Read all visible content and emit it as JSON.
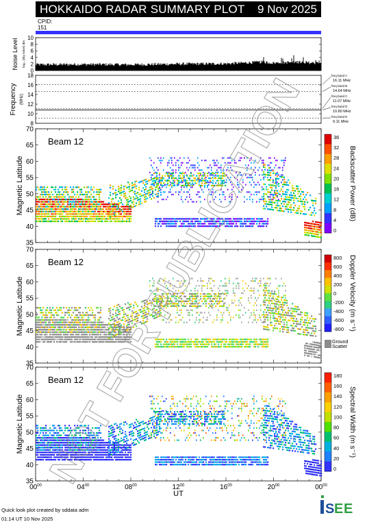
{
  "header": {
    "title": "HOKKAIDO RADAR SUMMARY PLOT",
    "date": "9 Nov 2025"
  },
  "cpid": {
    "label": "CPID:",
    "value": "151"
  },
  "noise": {
    "ylabel": "Noise Level",
    "ylabel_sub": "log₁₀ (sky noise) dm",
    "ticks": [
      "0",
      "2",
      "4",
      "6",
      "8",
      "10"
    ],
    "ylim": [
      0,
      10
    ]
  },
  "frequency": {
    "ylabel": "Frequency",
    "ylabel_unit": "(MHz)",
    "ticks": [
      "8",
      "10",
      "12",
      "14",
      "16",
      "18"
    ],
    "ylim": [
      8,
      18
    ],
    "bands": [
      {
        "name": "freq band A",
        "value": "16.11 MHz",
        "mhz": 16.11
      },
      {
        "name": "freq band B",
        "value": "14.64 MHz",
        "mhz": 14.64
      },
      {
        "name": "freq band C",
        "value": "11.07 MHz",
        "mhz": 11.07
      },
      {
        "name": "freq band D",
        "value": "10.80 MHz",
        "mhz": 10.8
      },
      {
        "name": "freq band E",
        "value": "9.11 MHz",
        "mhz": 9.11
      }
    ]
  },
  "panels": [
    {
      "id": "power",
      "beam": "Beam 12",
      "ylabel": "Magnetic Latitude",
      "colorbar_label": "Backscatter Power (dB)",
      "cb_ticks": [
        "36",
        "32",
        "28",
        "24",
        "20",
        "16",
        "12",
        "8",
        "4",
        "0"
      ]
    },
    {
      "id": "velocity",
      "beam": "Beam 12",
      "ylabel": "Magnetic Latitude",
      "colorbar_label": "Doppler Velocity (m s⁻¹)",
      "cb_ticks": [
        "800",
        "600",
        "400",
        "200",
        "0",
        "-200",
        "-400",
        "-600",
        "-800"
      ],
      "ground_label": "Ground",
      "ground_label2": "Scatter"
    },
    {
      "id": "width",
      "beam": "Beam 12",
      "ylabel": "Magnetic Latitude",
      "colorbar_label": "Spectral Width (m s⁻¹)",
      "cb_ticks": [
        "180",
        "160",
        "140",
        "120",
        "100",
        "80",
        "60",
        "40",
        "20",
        "0"
      ]
    }
  ],
  "lat_ticks": [
    "35",
    "40",
    "45",
    "50",
    "55",
    "60",
    "65",
    "70"
  ],
  "lat_range": [
    35,
    70
  ],
  "time_ticks": [
    {
      "hour": "00",
      "sup": "00"
    },
    {
      "hour": "04",
      "sup": "00"
    },
    {
      "hour": "08",
      "sup": "00"
    },
    {
      "hour": "12",
      "sup": "00"
    },
    {
      "hour": "16",
      "sup": "00"
    },
    {
      "hour": "20",
      "sup": "00"
    },
    {
      "hour": "00",
      "sup": "00"
    }
  ],
  "xlabel": "UT",
  "watermark": "NOT FOR PUBLICATION",
  "footer": {
    "credit": "Quick look plot created by sddata adm",
    "time": "01:14 UT 10 Nov 2025"
  },
  "logo": {
    "text": "ISEE"
  },
  "colors": {
    "header_bg": "#000000",
    "cpid_bar": "#3333ff",
    "ground": "#8c8c8c"
  },
  "chart_data": [
    {
      "type": "line",
      "title": "Noise Level",
      "x_range_ut_hours": [
        0,
        24
      ],
      "ylim": [
        0,
        10
      ],
      "series": [
        {
          "x_ut_hours": [
            0,
            4,
            8,
            12,
            16,
            19,
            20,
            22,
            24
          ],
          "values": [
            1.8,
            1.9,
            1.8,
            2.0,
            2.1,
            2.6,
            2.3,
            2.6,
            2.2
          ]
        }
      ]
    },
    {
      "type": "line",
      "title": "Frequency",
      "ylim": [
        8,
        18
      ],
      "x_range_ut_hours": [
        0,
        24
      ],
      "series": [
        {
          "name": "freq band A",
          "values": [
            16.11
          ]
        },
        {
          "name": "freq band B",
          "values": [
            14.64
          ]
        },
        {
          "name": "freq band C",
          "values": [
            11.07
          ]
        },
        {
          "name": "freq band D",
          "values": [
            10.8
          ]
        },
        {
          "name": "freq band E",
          "values": [
            9.11
          ]
        }
      ]
    },
    {
      "type": "heatmap",
      "title": "Backscatter Power (dB)",
      "x_range_ut_hours": [
        0,
        24
      ],
      "ylim": [
        35,
        70
      ],
      "zlim": [
        0,
        40
      ]
    },
    {
      "type": "heatmap",
      "title": "Doppler Velocity (m s⁻¹)",
      "x_range_ut_hours": [
        0,
        24
      ],
      "ylim": [
        35,
        70
      ],
      "zlim": [
        -900,
        900
      ]
    },
    {
      "type": "heatmap",
      "title": "Spectral Width (m s⁻¹)",
      "x_range_ut_hours": [
        0,
        24
      ],
      "ylim": [
        35,
        70
      ],
      "zlim": [
        0,
        190
      ]
    }
  ]
}
